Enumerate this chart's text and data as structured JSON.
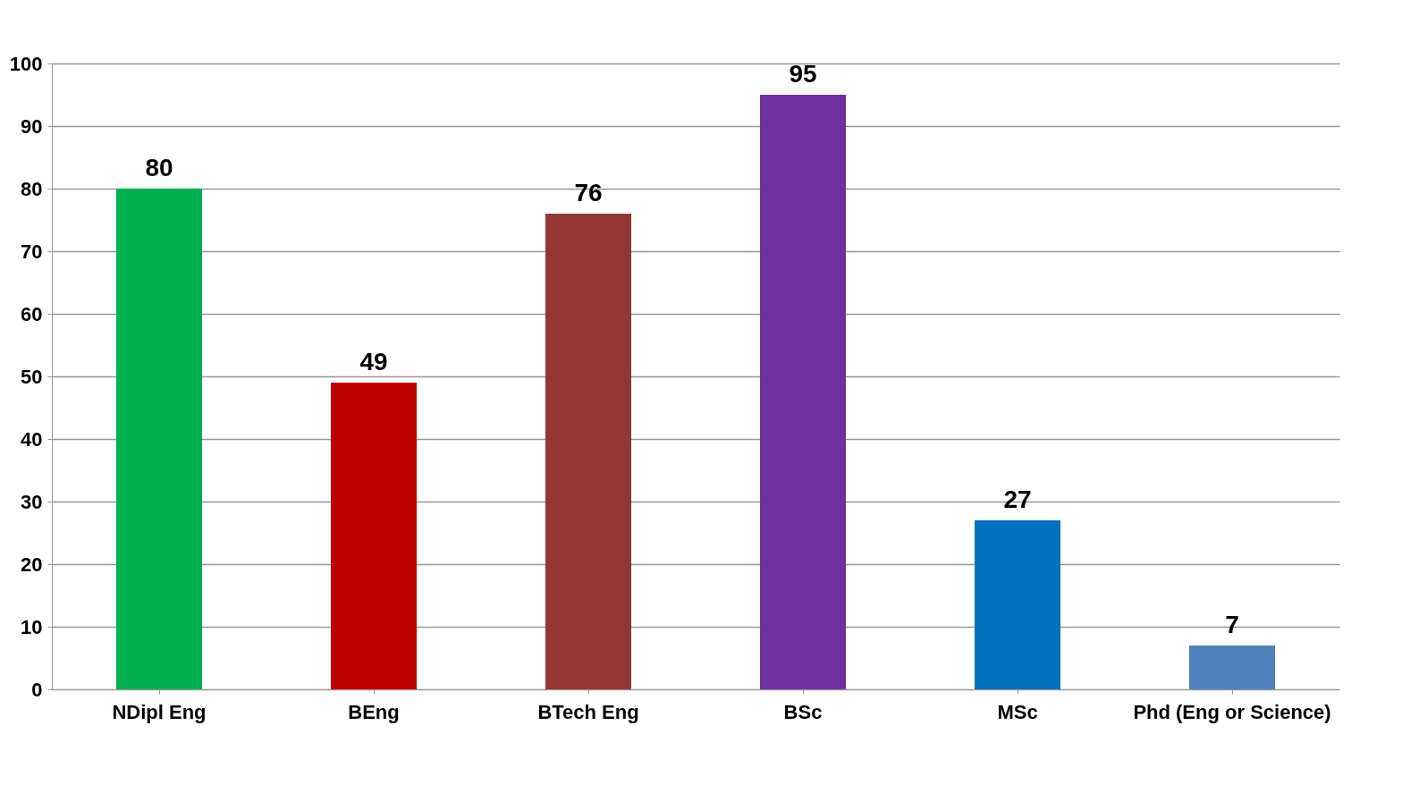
{
  "chart_data": {
    "type": "bar",
    "categories": [
      "NDipl Eng",
      "BEng",
      "BTech Eng",
      "BSc",
      "MSc",
      "Phd (Eng or Science)"
    ],
    "values": [
      80,
      49,
      76,
      95,
      27,
      7
    ],
    "colors": [
      "#00b050",
      "#c00000",
      "#943634",
      "#7030a0",
      "#0070c0",
      "#4f81bd"
    ],
    "ylim": [
      0,
      100
    ],
    "yticks": [
      0,
      10,
      20,
      30,
      40,
      50,
      60,
      70,
      80,
      90,
      100
    ],
    "grid": "y",
    "data_labels": true
  }
}
